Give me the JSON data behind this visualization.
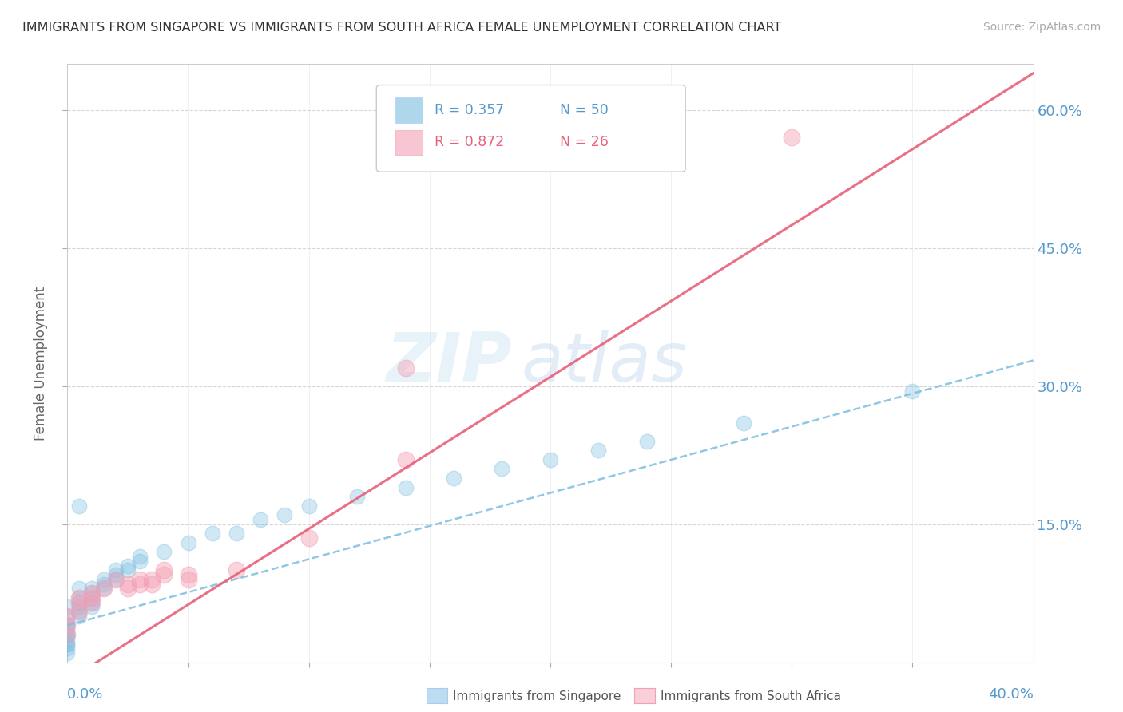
{
  "title": "IMMIGRANTS FROM SINGAPORE VS IMMIGRANTS FROM SOUTH AFRICA FEMALE UNEMPLOYMENT CORRELATION CHART",
  "source": "Source: ZipAtlas.com",
  "xlabel_bottom_left": "0.0%",
  "xlabel_bottom_right": "40.0%",
  "ylabel": "Female Unemployment",
  "y_tick_labels": [
    "15.0%",
    "30.0%",
    "45.0%",
    "60.0%"
  ],
  "y_tick_values": [
    0.15,
    0.3,
    0.45,
    0.6
  ],
  "x_lim": [
    0.0,
    0.4
  ],
  "y_lim": [
    0.0,
    0.65
  ],
  "watermark_zip": "ZIP",
  "watermark_atlas": "atlas",
  "singapore_color": "#7bbde0",
  "south_africa_color": "#f4a0b5",
  "background_color": "#ffffff",
  "grid_color": "#dddddd",
  "title_color": "#333333",
  "tick_label_color": "#5599cc",
  "sg_trend_intercept": 0.04,
  "sg_trend_slope": 0.72,
  "sa_trend_intercept": -0.02,
  "sa_trend_slope": 1.65,
  "singapore_points": [
    [
      0.0,
      0.01
    ],
    [
      0.0,
      0.02
    ],
    [
      0.0,
      0.015
    ],
    [
      0.0,
      0.025
    ],
    [
      0.0,
      0.03
    ],
    [
      0.0,
      0.035
    ],
    [
      0.0,
      0.04
    ],
    [
      0.0,
      0.05
    ],
    [
      0.0,
      0.06
    ],
    [
      0.0,
      0.02
    ],
    [
      0.0,
      0.03
    ],
    [
      0.0,
      0.04
    ],
    [
      0.005,
      0.05
    ],
    [
      0.005,
      0.06
    ],
    [
      0.005,
      0.055
    ],
    [
      0.005,
      0.065
    ],
    [
      0.005,
      0.07
    ],
    [
      0.005,
      0.08
    ],
    [
      0.01,
      0.06
    ],
    [
      0.01,
      0.07
    ],
    [
      0.01,
      0.075
    ],
    [
      0.01,
      0.08
    ],
    [
      0.01,
      0.065
    ],
    [
      0.015,
      0.08
    ],
    [
      0.015,
      0.085
    ],
    [
      0.015,
      0.09
    ],
    [
      0.02,
      0.09
    ],
    [
      0.02,
      0.095
    ],
    [
      0.02,
      0.1
    ],
    [
      0.025,
      0.1
    ],
    [
      0.025,
      0.105
    ],
    [
      0.03,
      0.11
    ],
    [
      0.03,
      0.115
    ],
    [
      0.04,
      0.12
    ],
    [
      0.05,
      0.13
    ],
    [
      0.06,
      0.14
    ],
    [
      0.07,
      0.14
    ],
    [
      0.08,
      0.155
    ],
    [
      0.09,
      0.16
    ],
    [
      0.1,
      0.17
    ],
    [
      0.12,
      0.18
    ],
    [
      0.14,
      0.19
    ],
    [
      0.16,
      0.2
    ],
    [
      0.18,
      0.21
    ],
    [
      0.2,
      0.22
    ],
    [
      0.22,
      0.23
    ],
    [
      0.24,
      0.24
    ],
    [
      0.28,
      0.26
    ],
    [
      0.35,
      0.295
    ],
    [
      0.005,
      0.17
    ]
  ],
  "south_africa_points": [
    [
      0.0,
      0.03
    ],
    [
      0.0,
      0.04
    ],
    [
      0.0,
      0.05
    ],
    [
      0.005,
      0.055
    ],
    [
      0.005,
      0.065
    ],
    [
      0.005,
      0.07
    ],
    [
      0.01,
      0.065
    ],
    [
      0.01,
      0.07
    ],
    [
      0.01,
      0.075
    ],
    [
      0.015,
      0.08
    ],
    [
      0.02,
      0.09
    ],
    [
      0.025,
      0.08
    ],
    [
      0.025,
      0.085
    ],
    [
      0.03,
      0.09
    ],
    [
      0.03,
      0.085
    ],
    [
      0.035,
      0.085
    ],
    [
      0.035,
      0.09
    ],
    [
      0.04,
      0.095
    ],
    [
      0.04,
      0.1
    ],
    [
      0.05,
      0.09
    ],
    [
      0.05,
      0.095
    ],
    [
      0.07,
      0.1
    ],
    [
      0.1,
      0.135
    ],
    [
      0.14,
      0.22
    ],
    [
      0.14,
      0.32
    ],
    [
      0.3,
      0.57
    ]
  ]
}
